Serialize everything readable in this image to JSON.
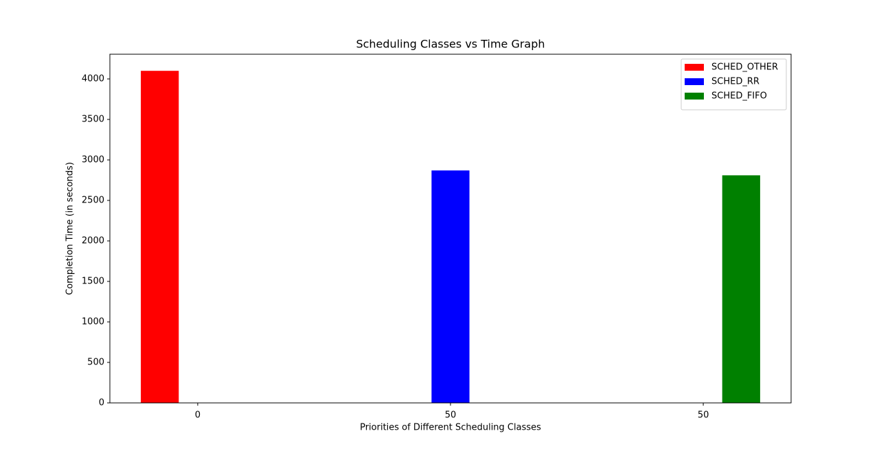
{
  "chart_data": {
    "type": "bar",
    "title": "Scheduling Classes vs Time Graph",
    "xlabel": "Priorities of Different Scheduling Classes",
    "ylabel": "Completion Time (in seconds)",
    "categories": [
      "0",
      "50",
      "50"
    ],
    "series": [
      {
        "name": "SCHED_OTHER",
        "color": "#ff0000",
        "values": [
          4100,
          null,
          null
        ]
      },
      {
        "name": "SCHED_RR",
        "color": "#0000ff",
        "values": [
          null,
          2870,
          null
        ]
      },
      {
        "name": "SCHED_FIFO",
        "color": "#008000",
        "values": [
          null,
          null,
          2810
        ]
      }
    ],
    "ylim": [
      0,
      4305
    ],
    "yticks": [
      0,
      500,
      1000,
      1500,
      2000,
      2500,
      3000,
      3500,
      4000
    ],
    "grid": false,
    "legend": "upper right"
  }
}
